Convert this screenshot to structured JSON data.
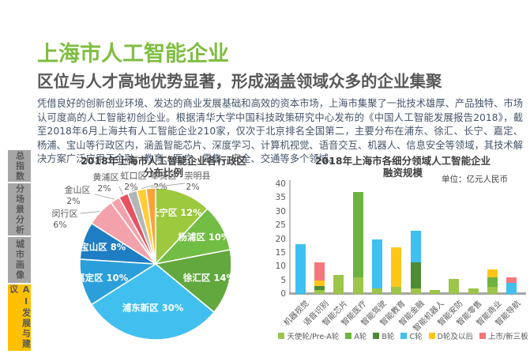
{
  "page": {
    "title": "上海市人工智能企业",
    "subtitle": "区位与人才高地优势显著，形成涵盖领域众多的企业集聚",
    "body": "凭借良好的创新创业环境、发达的商业发展基础和高效的资本市场，上海市集聚了一批技术雄厚、产品独特、市场认可度高的人工智能初创企业。根据清华大学中国科技政策研究中心发布的《中国人工智能发展报告2018》，截至2018年6月上海共有人工智能企业210家，仅次于北京排名全国第二，主要分布在浦东、徐汇、长宁、嘉定、杨浦、宝山等行政区内，涵盖智能芯片、深度学习、计算机视觉、语音交互、机器人、信息安全等领域，其技术解决方案广泛应用于金融、教育、医疗、零售、安全、交通等多个领域。",
    "title_color": "#7FBE41",
    "subtitle_color": "#595959",
    "body_color": "#44546A"
  },
  "sidebar": {
    "items": [
      {
        "label": "总指数",
        "active": false
      },
      {
        "label": "分场景分析",
        "active": false
      },
      {
        "label": "城市画像",
        "active": false
      },
      {
        "label": "AI发展与建议",
        "active": true
      }
    ],
    "inactive_bg": "#A6A6A6",
    "active_bg": "#FFC000",
    "text_color": "#595959"
  },
  "chart_data": [
    {
      "type": "pie",
      "title": "2018年上海市人工智能企业各行政区分布比例",
      "title_lines": [
        "2018年上海市人工智能企业各行政区",
        "分布比例"
      ],
      "value_unit": "%",
      "slices": [
        {
          "name": "长宁区",
          "value": 12,
          "color": "#9CC93E",
          "label": "inside"
        },
        {
          "name": "杨浦区",
          "value": 10,
          "color": "#72BD44",
          "label": "inside"
        },
        {
          "name": "徐汇区",
          "value": 14,
          "color": "#62A83E",
          "label": "inside"
        },
        {
          "name": "浦东新区",
          "value": 30,
          "color": "#41C0F0",
          "label": "inside"
        },
        {
          "name": "嘉定区",
          "value": 10,
          "color": "#2B9FD9",
          "label": "inside"
        },
        {
          "name": "宝山区",
          "value": 8,
          "color": "#1F7EC3",
          "label": "inside"
        },
        {
          "name": "闵行区",
          "value": 6,
          "color": "#F3A2AB",
          "label": "outside"
        },
        {
          "name": "金山区",
          "value": 2,
          "color": "#F3A2AB",
          "label": "outside"
        },
        {
          "name": "黄浦区",
          "value": 2,
          "color": "#E8515F",
          "label": "outside"
        },
        {
          "name": "虹口区",
          "value": 2,
          "color": "#B5B5B5",
          "label": "outside"
        },
        {
          "name": "奉贤区",
          "value": 2,
          "color": "#FFCD34",
          "label": "outside"
        },
        {
          "name": "崇明县",
          "value": 2,
          "color": "#F9A23B",
          "label": "outside"
        }
      ]
    },
    {
      "type": "bar",
      "stacked": true,
      "title": "2018年上海市各细分领域人工智能企业融资规模",
      "title_lines": [
        "2018年上海市各细分领域人工智能企业",
        "融资规模"
      ],
      "unit": "单位：亿元人民币",
      "categories": [
        "机器视觉",
        "语音识别",
        "智能芯片",
        "智能医疗",
        "智能驾驶",
        "智能教育",
        "智能金融",
        "智能机器人",
        "智能安防",
        "智能零售",
        "智能商业",
        "智能导航"
      ],
      "series": [
        {
          "name": "天使轮/Pre-A轮",
          "color": "#9CC54A",
          "values": [
            0,
            1.5,
            7,
            6,
            2,
            2.5,
            2,
            1.5,
            5.5,
            2,
            2.5,
            0
          ]
        },
        {
          "name": "A轮",
          "color": "#6EB33E",
          "values": [
            0,
            0,
            0,
            31,
            0,
            0,
            0,
            0,
            0,
            0,
            3.5,
            0
          ]
        },
        {
          "name": "B轮",
          "color": "#4E8B35",
          "values": [
            0,
            1.5,
            0,
            0,
            0,
            0,
            9.5,
            0,
            0,
            0,
            0,
            0
          ]
        },
        {
          "name": "C轮",
          "color": "#3FC0F0",
          "values": [
            18,
            0,
            0,
            0,
            18,
            0,
            11.5,
            0,
            0,
            0,
            0,
            4
          ]
        },
        {
          "name": "D轮及以后",
          "color": "#FFC61A",
          "values": [
            0,
            2,
            0,
            0,
            0,
            14.5,
            0,
            0,
            0,
            0,
            3,
            0
          ]
        },
        {
          "name": "上市/新三板",
          "color": "#F4777B",
          "values": [
            0,
            6.5,
            0,
            0,
            0,
            0,
            0,
            0,
            0,
            0,
            0,
            2
          ]
        }
      ],
      "ylim": [
        0,
        40
      ],
      "ytick_step": 5,
      "grid": false,
      "legend_position": "bottom"
    }
  ]
}
